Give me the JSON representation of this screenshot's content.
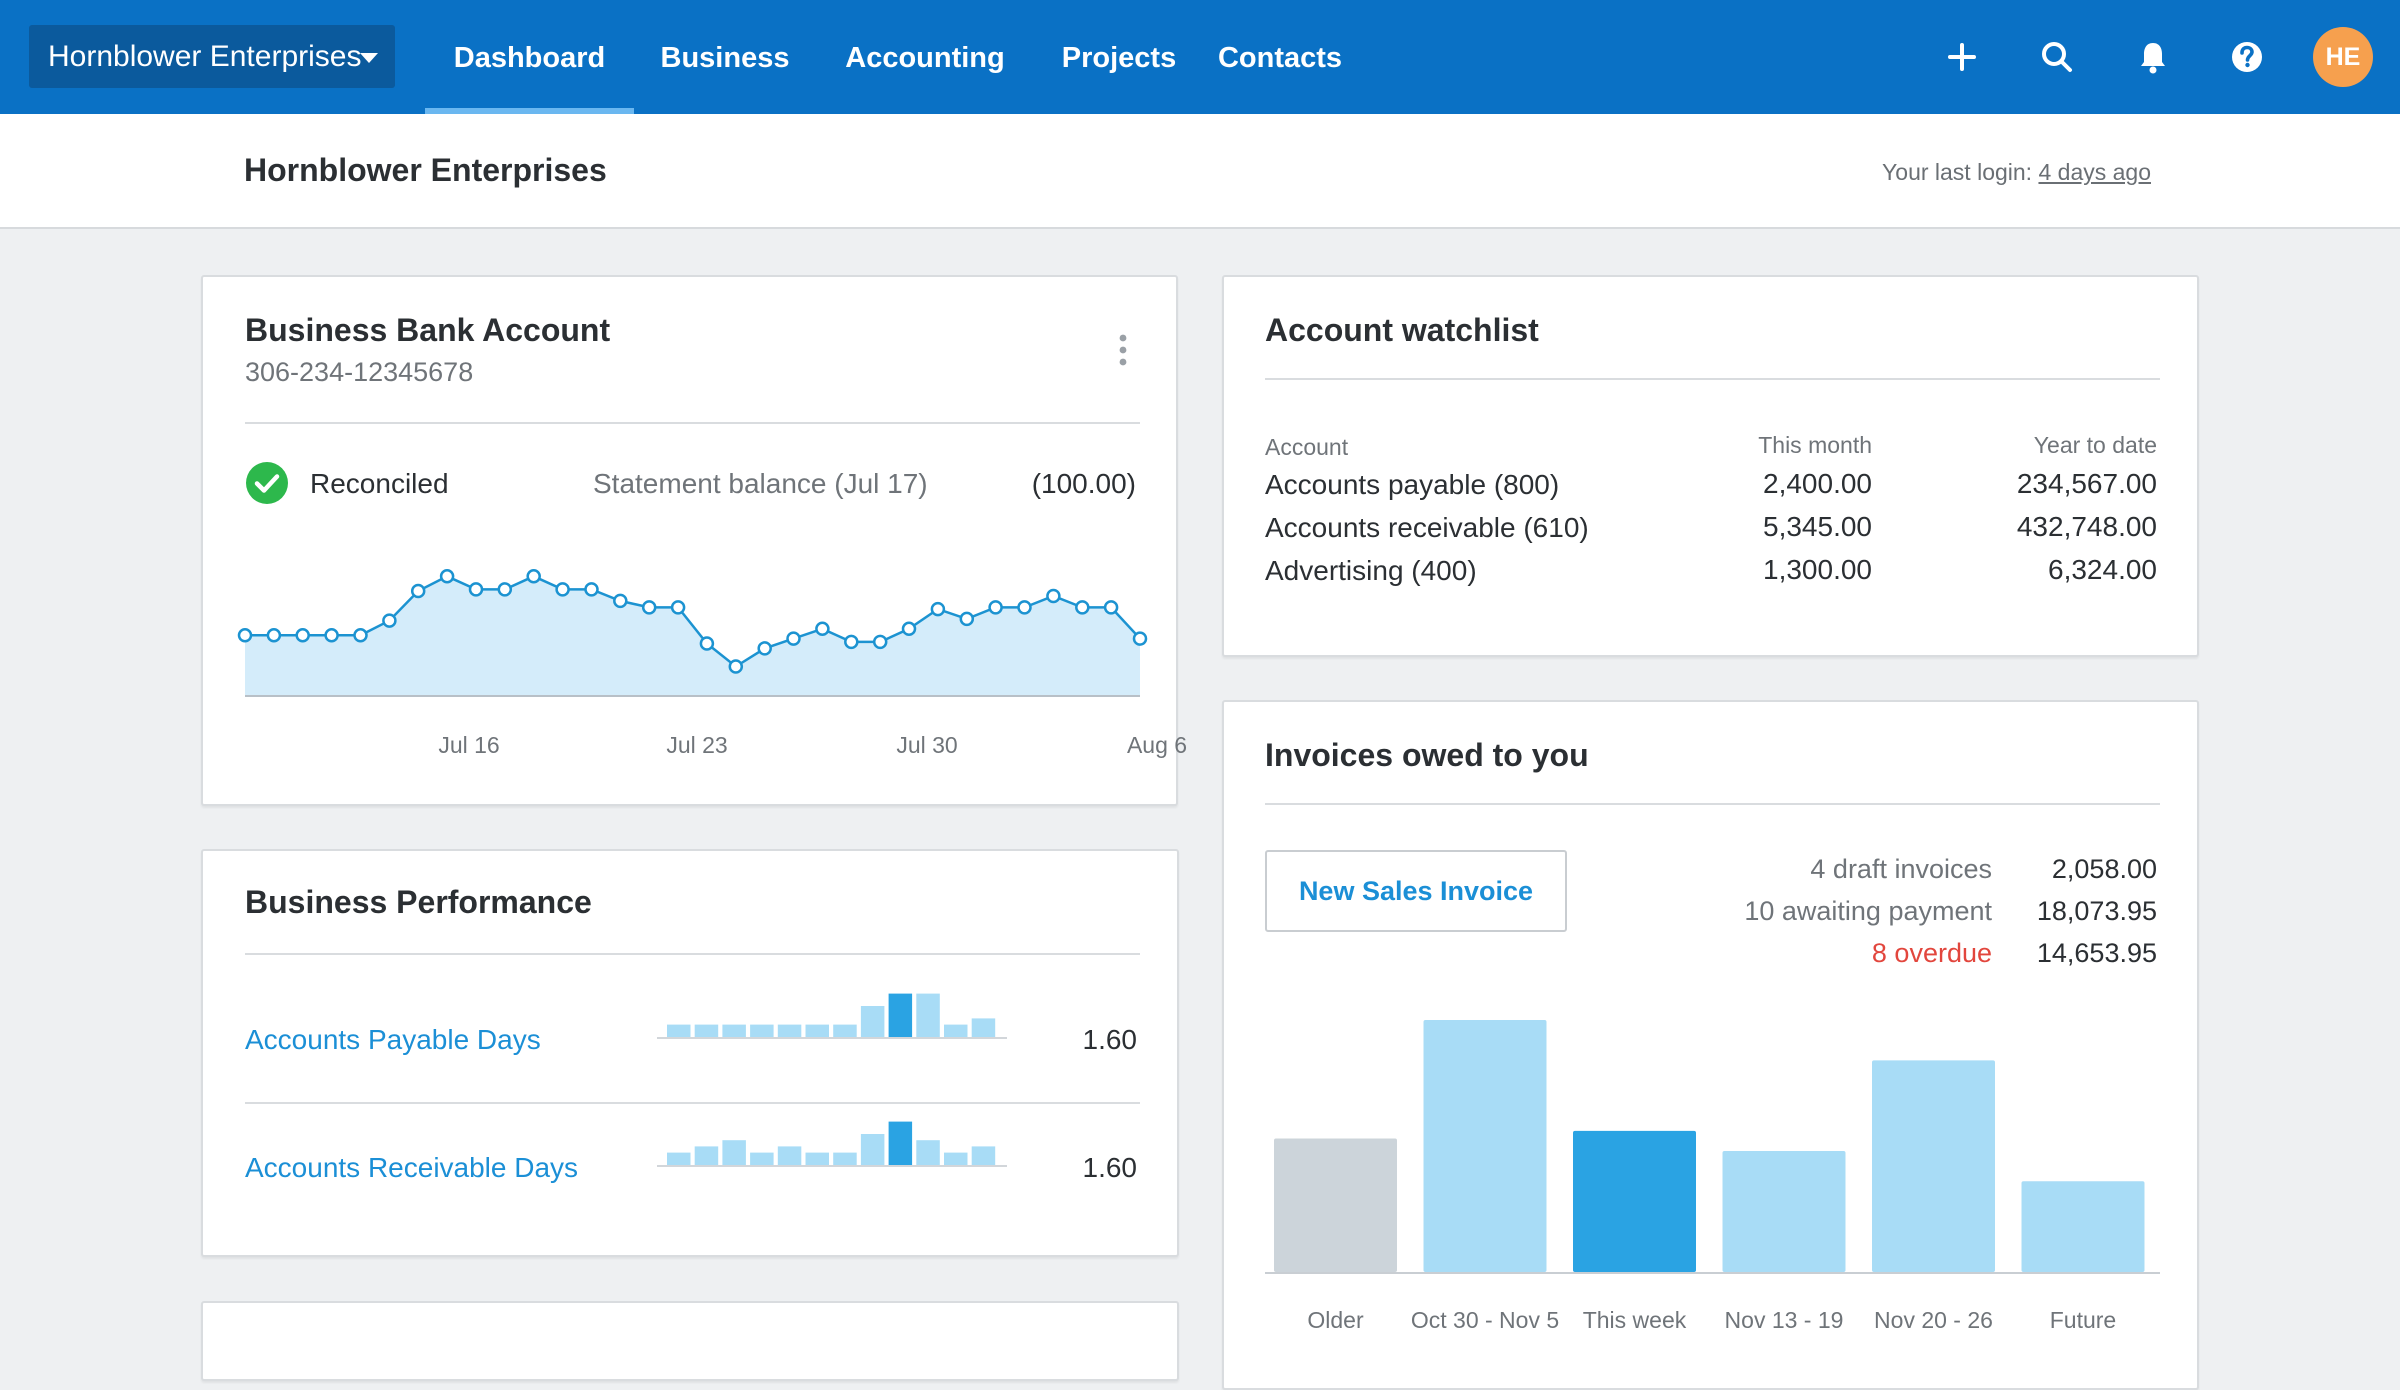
{
  "topbar": {
    "org_name": "Hornblower Enterprises",
    "nav": [
      "Dashboard",
      "Business",
      "Accounting",
      "Projects",
      "Contacts"
    ],
    "avatar": "HE",
    "colors": {
      "bar": "#0a71c5",
      "avatar": "#f6a04e"
    }
  },
  "subheader": {
    "title": "Hornblower Enterprises",
    "last_login_label": "Your last login:",
    "last_login_value": "4 days ago"
  },
  "bank": {
    "title": "Business Bank Account",
    "account_number": "306-234-12345678",
    "reconciled": "Reconciled",
    "statement_label": "Statement balance (Jul 17)",
    "statement_value": "(100.00)",
    "x_labels": [
      "Jul 16",
      "Jul 23",
      "Jul 30",
      "Aug 6"
    ]
  },
  "watchlist": {
    "title": "Account watchlist",
    "headers": [
      "Account",
      "This month",
      "Year to date"
    ],
    "rows": [
      {
        "account": "Accounts payable (800)",
        "month": "2,400.00",
        "ytd": "234,567.00"
      },
      {
        "account": "Accounts receivable (610)",
        "month": "5,345.00",
        "ytd": "432,748.00"
      },
      {
        "account": "Advertising (400)",
        "month": "1,300.00",
        "ytd": "6,324.00"
      }
    ]
  },
  "performance": {
    "title": "Business Performance",
    "rows": [
      {
        "label": "Accounts Payable Days",
        "value": "1.60",
        "bars": [
          2,
          2,
          2,
          2,
          2,
          2,
          2,
          5,
          7,
          7,
          2,
          3
        ],
        "highlight": 8
      },
      {
        "label": "Accounts Receivable Days",
        "value": "1.60",
        "bars": [
          2,
          3,
          4,
          2,
          3,
          2,
          2,
          5,
          7,
          4,
          2,
          3
        ],
        "highlight": 8
      }
    ]
  },
  "invoices": {
    "title": "Invoices owed to you",
    "new_button": "New Sales Invoice",
    "summary": [
      {
        "label": "4 draft invoices",
        "value": "2,058.00",
        "overdue": false
      },
      {
        "label": "10 awaiting payment",
        "value": "18,073.95",
        "overdue": false
      },
      {
        "label": "8 overdue",
        "value": "14,653.95",
        "overdue": true
      }
    ]
  },
  "chart_data": [
    {
      "type": "area",
      "x_tick_labels": [
        "Jul 16",
        "Jul 23",
        "Jul 30",
        "Aug 6"
      ],
      "values": [
        37,
        37,
        37,
        37,
        37,
        46,
        64,
        73,
        65,
        65,
        73,
        65,
        65,
        58,
        54,
        54,
        32,
        18,
        29,
        35,
        41,
        33,
        33,
        41,
        53,
        47,
        54,
        54,
        61,
        54,
        54,
        35
      ],
      "grid": false,
      "colors": {
        "line": "#1c93d1",
        "fill": "#d4ecfa"
      }
    },
    {
      "type": "bar",
      "categories": [
        "Older",
        "Oct 30 - Nov 5",
        "This week",
        "Nov 13 - 19",
        "Nov 20 - 26",
        "Future"
      ],
      "values": [
        0.53,
        1.0,
        0.56,
        0.48,
        0.84,
        0.36
      ],
      "highlight": 2,
      "colors": {
        "older": "#ccd4da",
        "default": "#a8dcf6",
        "highlight": "#2aa3e3"
      }
    }
  ]
}
